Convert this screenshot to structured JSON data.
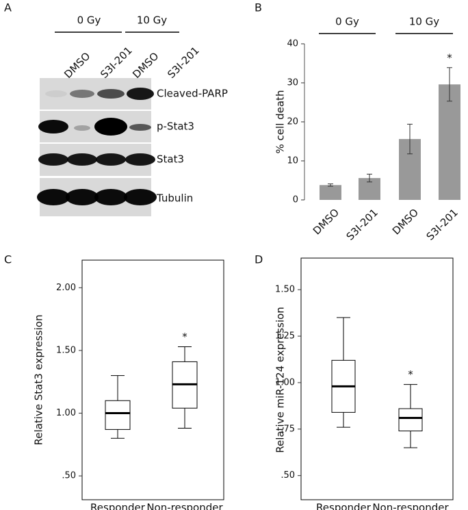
{
  "blot": {
    "panel_label": "A",
    "group_labels": [
      "0 Gy",
      "10 Gy"
    ],
    "lanes": [
      "DMSO",
      "S3I-201",
      "DMSO",
      "S3I-201"
    ],
    "rows": [
      "Cleaved-PARP",
      "p-Stat3",
      "Stat3",
      "Tubulin"
    ]
  },
  "chart_data": [
    {
      "type": "bar",
      "panel_label": "B",
      "y_label": "% cell death",
      "group_labels": [
        "0 Gy",
        "10 Gy"
      ],
      "categories": [
        "DMSO",
        "S3I-201",
        "DMSO",
        "S3I-201"
      ],
      "values": [
        3.8,
        5.6,
        15.6,
        29.6
      ],
      "errors": [
        0.3,
        1.0,
        3.8,
        4.3
      ],
      "significance": [
        null,
        null,
        null,
        "*"
      ],
      "color": "#999999",
      "ylim": [
        0,
        40
      ],
      "yticks": [
        0,
        10,
        20,
        30,
        40
      ]
    },
    {
      "type": "box",
      "panel_label": "C",
      "y_label": "Relative  Stat3 expression",
      "categories": [
        "Responder",
        "Non-responder"
      ],
      "boxes": [
        {
          "min": 0.8,
          "q1": 0.87,
          "median": 1.0,
          "q3": 1.1,
          "max": 1.3
        },
        {
          "min": 0.88,
          "q1": 1.04,
          "median": 1.23,
          "q3": 1.41,
          "max": 1.53
        }
      ],
      "significance": [
        null,
        "*"
      ],
      "ylim": [
        0.31,
        2.22
      ],
      "yticks": [
        {
          "value": 0.5,
          "label": ".50"
        },
        {
          "value": 1.0,
          "label": "1.00"
        },
        {
          "value": 1.5,
          "label": "1.50"
        },
        {
          "value": 2.0,
          "label": "2.00"
        }
      ]
    },
    {
      "type": "box",
      "panel_label": "D",
      "y_label": "Relative miR-124 expression",
      "categories": [
        "Responder",
        "Non-responder"
      ],
      "boxes": [
        {
          "min": 0.76,
          "q1": 0.84,
          "median": 0.98,
          "q3": 1.12,
          "max": 1.35
        },
        {
          "min": 0.65,
          "q1": 0.74,
          "median": 0.81,
          "q3": 0.86,
          "max": 0.99
        }
      ],
      "significance": [
        null,
        "*"
      ],
      "ylim": [
        0.37,
        1.67
      ],
      "yticks": [
        {
          "value": 0.5,
          "label": ".50"
        },
        {
          "value": 0.75,
          "label": ".75"
        },
        {
          "value": 1.0,
          "label": "1.00"
        },
        {
          "value": 1.25,
          "label": "1.25"
        },
        {
          "value": 1.5,
          "label": "1.50"
        }
      ]
    }
  ]
}
